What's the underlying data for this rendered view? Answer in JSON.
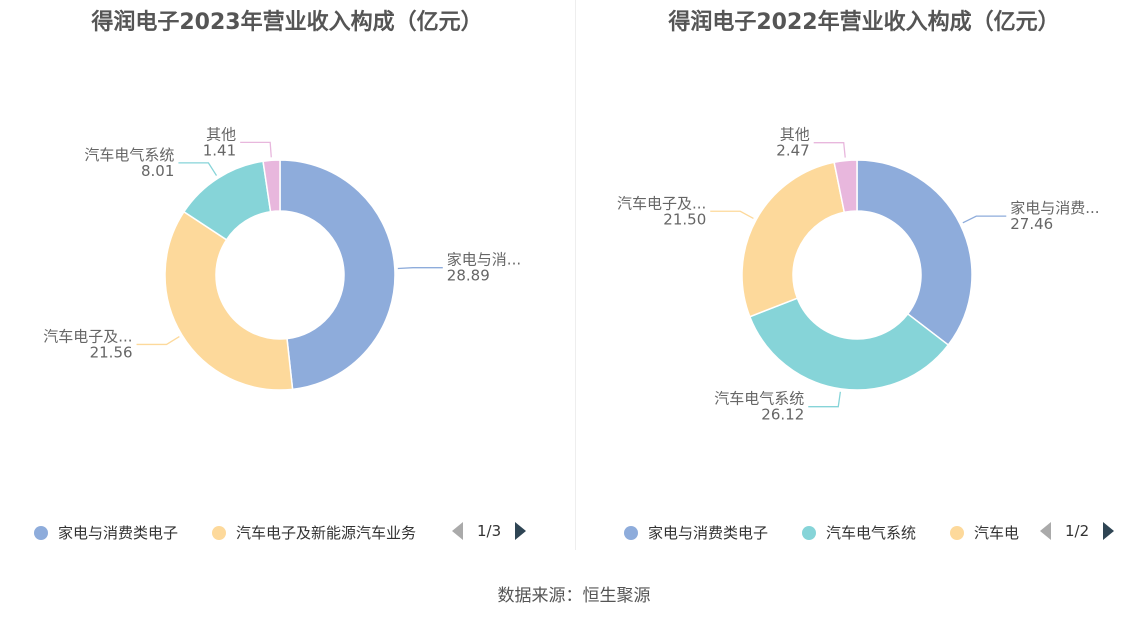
{
  "source": "数据来源：恒生聚源",
  "chart_data": [
    {
      "type": "pie",
      "donut": true,
      "title": "得润电子2023年营业收入构成（亿元）",
      "series": [
        {
          "name": "家电与消费类电子",
          "label": "家电与消...",
          "value": 28.89,
          "value_text": "28.89",
          "color": "#8eacdb"
        },
        {
          "name": "汽车电子及新能源汽车业务",
          "label": "汽车电子及...",
          "value": 21.56,
          "value_text": "21.56",
          "color": "#fdd99b"
        },
        {
          "name": "汽车电气系统",
          "label": "汽车电气系统",
          "value": 8.01,
          "value_text": "8.01",
          "color": "#86d4d8"
        },
        {
          "name": "其他",
          "label": "其他",
          "value": 1.41,
          "value_text": "1.41",
          "color": "#e8b7dd"
        }
      ],
      "legend": {
        "items": [
          "家电与消费类电子",
          "汽车电子及新能源汽车业务"
        ],
        "page": "1/3",
        "placement": "bottom"
      }
    },
    {
      "type": "pie",
      "donut": true,
      "title": "得润电子2022年营业收入构成（亿元）",
      "series": [
        {
          "name": "家电与消费类电子",
          "label": "家电与消费...",
          "value": 27.46,
          "value_text": "27.46",
          "color": "#8eacdb"
        },
        {
          "name": "汽车电气系统",
          "label": "汽车电气系统",
          "value": 26.12,
          "value_text": "26.12",
          "color": "#86d4d8"
        },
        {
          "name": "汽车电子及新能源汽车业务",
          "label": "汽车电子及...",
          "value": 21.5,
          "value_text": "21.50",
          "color": "#fdd99b"
        },
        {
          "name": "其他",
          "label": "其他",
          "value": 2.47,
          "value_text": "2.47",
          "color": "#e8b7dd"
        }
      ],
      "legend": {
        "items": [
          "家电与消费类电子",
          "汽车电气系统",
          "汽车电"
        ],
        "page": "1/2",
        "placement": "bottom"
      }
    }
  ]
}
